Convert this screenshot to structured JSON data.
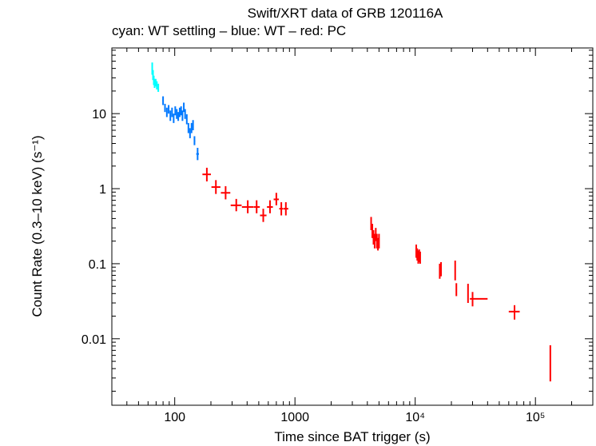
{
  "chart_data": {
    "type": "scatter",
    "title": "Swift/XRT data of GRB 120116A",
    "subtitle": "cyan: WT settling – blue: WT – red: PC",
    "xlabel": "Time since BAT trigger (s)",
    "ylabel": "Count Rate (0.3–10 keV) (s⁻¹)",
    "x_scale": "log",
    "y_scale": "log",
    "xlim": [
      30,
      300000
    ],
    "ylim": [
      0.0013,
      75
    ],
    "grid": false,
    "x_ticks": [
      {
        "value": 100,
        "label": "100"
      },
      {
        "value": 1000,
        "label": "1000"
      },
      {
        "value": 10000,
        "label": "10⁴"
      },
      {
        "value": 100000,
        "label": "10⁵"
      }
    ],
    "y_ticks": [
      {
        "value": 0.01,
        "label": "0.01"
      },
      {
        "value": 0.1,
        "label": "0.1"
      },
      {
        "value": 1,
        "label": "1"
      },
      {
        "value": 10,
        "label": "10"
      }
    ],
    "series": [
      {
        "color": "#00ffff",
        "points": [
          {
            "x": 65,
            "y": 40,
            "xlo": 64.5,
            "xhi": 65.5,
            "ylo": 33,
            "yhi": 48
          },
          {
            "x": 66,
            "y": 33,
            "xlo": 65.5,
            "xhi": 66.5,
            "ylo": 28,
            "yhi": 38
          },
          {
            "x": 67,
            "y": 28,
            "xlo": 66.5,
            "xhi": 67.5,
            "ylo": 24,
            "yhi": 32
          },
          {
            "x": 68,
            "y": 25,
            "xlo": 67.5,
            "xhi": 68.5,
            "ylo": 22,
            "yhi": 29
          },
          {
            "x": 69.5,
            "y": 26,
            "xlo": 69,
            "xhi": 70,
            "ylo": 23,
            "yhi": 29
          },
          {
            "x": 71,
            "y": 24,
            "xlo": 70.5,
            "xhi": 71.5,
            "ylo": 21,
            "yhi": 27
          },
          {
            "x": 73,
            "y": 22,
            "xlo": 72.5,
            "xhi": 73.5,
            "ylo": 19.5,
            "yhi": 25
          }
        ]
      },
      {
        "color": "#0078ff",
        "points": [
          {
            "x": 80,
            "y": 15,
            "xlo": 79,
            "xhi": 81,
            "ylo": 13,
            "yhi": 17
          },
          {
            "x": 83,
            "y": 12,
            "xlo": 82,
            "xhi": 84,
            "ylo": 10.5,
            "yhi": 13.5
          },
          {
            "x": 86,
            "y": 10.5,
            "xlo": 85,
            "xhi": 87,
            "ylo": 9,
            "yhi": 12
          },
          {
            "x": 89,
            "y": 11.5,
            "xlo": 88,
            "xhi": 90,
            "ylo": 10,
            "yhi": 13
          },
          {
            "x": 92,
            "y": 9.5,
            "xlo": 91,
            "xhi": 93,
            "ylo": 8,
            "yhi": 11
          },
          {
            "x": 95,
            "y": 10.5,
            "xlo": 94,
            "xhi": 96,
            "ylo": 9,
            "yhi": 12
          },
          {
            "x": 98,
            "y": 8.8,
            "xlo": 97,
            "xhi": 99,
            "ylo": 7.5,
            "yhi": 10
          },
          {
            "x": 101,
            "y": 11,
            "xlo": 100,
            "xhi": 102,
            "ylo": 9.5,
            "yhi": 12.5
          },
          {
            "x": 104,
            "y": 10,
            "xlo": 103,
            "xhi": 105,
            "ylo": 8.5,
            "yhi": 11.5
          },
          {
            "x": 107,
            "y": 9.2,
            "xlo": 106,
            "xhi": 108,
            "ylo": 8,
            "yhi": 10.5
          },
          {
            "x": 110,
            "y": 10.5,
            "xlo": 109,
            "xhi": 111,
            "ylo": 9,
            "yhi": 12
          },
          {
            "x": 113,
            "y": 11,
            "xlo": 112,
            "xhi": 114,
            "ylo": 9.5,
            "yhi": 12.5
          },
          {
            "x": 116,
            "y": 9.5,
            "xlo": 115,
            "xhi": 117,
            "ylo": 8,
            "yhi": 11
          },
          {
            "x": 119,
            "y": 12,
            "xlo": 118,
            "xhi": 120,
            "ylo": 10.5,
            "yhi": 14
          },
          {
            "x": 122,
            "y": 10,
            "xlo": 121,
            "xhi": 123,
            "ylo": 8.5,
            "yhi": 11.5
          },
          {
            "x": 126,
            "y": 8.5,
            "xlo": 125,
            "xhi": 127,
            "ylo": 7.2,
            "yhi": 9.8
          },
          {
            "x": 130,
            "y": 6.5,
            "xlo": 129,
            "xhi": 131,
            "ylo": 5.5,
            "yhi": 7.5
          },
          {
            "x": 134,
            "y": 5.5,
            "xlo": 133,
            "xhi": 135,
            "ylo": 4.7,
            "yhi": 6.4
          },
          {
            "x": 138,
            "y": 6.5,
            "xlo": 137,
            "xhi": 139,
            "ylo": 5.5,
            "yhi": 7.5
          },
          {
            "x": 142,
            "y": 7,
            "xlo": 141,
            "xhi": 143,
            "ylo": 6,
            "yhi": 8.2
          },
          {
            "x": 146,
            "y": 4.3,
            "xlo": 144,
            "xhi": 148,
            "ylo": 3.8,
            "yhi": 5
          },
          {
            "x": 155,
            "y": 2.9,
            "xlo": 151,
            "xhi": 159,
            "ylo": 2.4,
            "yhi": 3.5
          }
        ]
      },
      {
        "color": "#ff0000",
        "points": [
          {
            "x": 185,
            "y": 1.55,
            "xlo": 170,
            "xhi": 200,
            "ylo": 1.25,
            "yhi": 1.9
          },
          {
            "x": 220,
            "y": 1.05,
            "xlo": 202,
            "xhi": 240,
            "ylo": 0.85,
            "yhi": 1.3
          },
          {
            "x": 265,
            "y": 0.88,
            "xlo": 242,
            "xhi": 290,
            "ylo": 0.72,
            "yhi": 1.08
          },
          {
            "x": 325,
            "y": 0.6,
            "xlo": 292,
            "xhi": 360,
            "ylo": 0.5,
            "yhi": 0.73
          },
          {
            "x": 405,
            "y": 0.57,
            "xlo": 362,
            "xhi": 450,
            "ylo": 0.47,
            "yhi": 0.7
          },
          {
            "x": 480,
            "y": 0.57,
            "xlo": 452,
            "xhi": 510,
            "ylo": 0.47,
            "yhi": 0.7
          },
          {
            "x": 545,
            "y": 0.44,
            "xlo": 512,
            "xhi": 580,
            "ylo": 0.36,
            "yhi": 0.54
          },
          {
            "x": 620,
            "y": 0.57,
            "xlo": 585,
            "xhi": 655,
            "ylo": 0.47,
            "yhi": 0.7
          },
          {
            "x": 700,
            "y": 0.72,
            "xlo": 665,
            "xhi": 735,
            "ylo": 0.6,
            "yhi": 0.88
          },
          {
            "x": 770,
            "y": 0.54,
            "xlo": 740,
            "xhi": 800,
            "ylo": 0.44,
            "yhi": 0.66
          },
          {
            "x": 840,
            "y": 0.54,
            "xlo": 805,
            "xhi": 880,
            "ylo": 0.44,
            "yhi": 0.66
          },
          {
            "x": 4300,
            "y": 0.35,
            "xlo": 4280,
            "xhi": 4320,
            "ylo": 0.28,
            "yhi": 0.42
          },
          {
            "x": 4400,
            "y": 0.28,
            "xlo": 4380,
            "xhi": 4420,
            "ylo": 0.22,
            "yhi": 0.34
          },
          {
            "x": 4500,
            "y": 0.23,
            "xlo": 4480,
            "xhi": 4520,
            "ylo": 0.18,
            "yhi": 0.28
          },
          {
            "x": 4600,
            "y": 0.2,
            "xlo": 4580,
            "xhi": 4620,
            "ylo": 0.16,
            "yhi": 0.25
          },
          {
            "x": 4700,
            "y": 0.25,
            "xlo": 4680,
            "xhi": 4720,
            "ylo": 0.2,
            "yhi": 0.3
          },
          {
            "x": 4800,
            "y": 0.2,
            "xlo": 4780,
            "xhi": 4820,
            "ylo": 0.16,
            "yhi": 0.25
          },
          {
            "x": 4900,
            "y": 0.18,
            "xlo": 4880,
            "xhi": 4920,
            "ylo": 0.15,
            "yhi": 0.22
          },
          {
            "x": 5000,
            "y": 0.2,
            "xlo": 4980,
            "xhi": 5020,
            "ylo": 0.16,
            "yhi": 0.25
          },
          {
            "x": 10200,
            "y": 0.15,
            "xlo": 10150,
            "xhi": 10250,
            "ylo": 0.12,
            "yhi": 0.18
          },
          {
            "x": 10400,
            "y": 0.135,
            "xlo": 10350,
            "xhi": 10450,
            "ylo": 0.11,
            "yhi": 0.16
          },
          {
            "x": 10600,
            "y": 0.125,
            "xlo": 10550,
            "xhi": 10650,
            "ylo": 0.1,
            "yhi": 0.15
          },
          {
            "x": 10800,
            "y": 0.13,
            "xlo": 10750,
            "xhi": 10850,
            "ylo": 0.105,
            "yhi": 0.155
          },
          {
            "x": 11000,
            "y": 0.12,
            "xlo": 10950,
            "xhi": 11050,
            "ylo": 0.1,
            "yhi": 0.145
          },
          {
            "x": 16000,
            "y": 0.08,
            "xlo": 15900,
            "xhi": 16100,
            "ylo": 0.063,
            "yhi": 0.1
          },
          {
            "x": 16400,
            "y": 0.085,
            "xlo": 16300,
            "xhi": 16500,
            "ylo": 0.068,
            "yhi": 0.105
          },
          {
            "x": 21500,
            "y": 0.085,
            "xlo": 21400,
            "xhi": 21600,
            "ylo": 0.06,
            "yhi": 0.11
          },
          {
            "x": 22000,
            "y": 0.045,
            "xlo": 21800,
            "xhi": 22200,
            "ylo": 0.037,
            "yhi": 0.055
          },
          {
            "x": 27500,
            "y": 0.04,
            "xlo": 27300,
            "xhi": 27700,
            "ylo": 0.03,
            "yhi": 0.054
          },
          {
            "x": 30000,
            "y": 0.034,
            "xlo": 28500,
            "xhi": 40000,
            "ylo": 0.027,
            "yhi": 0.042
          },
          {
            "x": 67000,
            "y": 0.023,
            "xlo": 60000,
            "xhi": 74000,
            "ylo": 0.018,
            "yhi": 0.028
          },
          {
            "x": 133000,
            "y": 0.0045,
            "xlo": 132000,
            "xhi": 134000,
            "ylo": 0.0027,
            "yhi": 0.0082
          }
        ]
      }
    ]
  }
}
